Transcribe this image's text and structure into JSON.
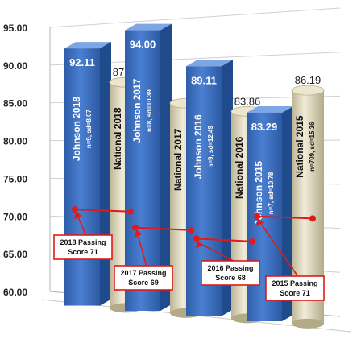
{
  "chart_data": {
    "type": "bar",
    "ylim": [
      60,
      95
    ],
    "yticks": [
      "95.00",
      "90.00",
      "85.00",
      "80.00",
      "75.00",
      "70.00",
      "65.00",
      "60.00"
    ],
    "grid": true,
    "colors": {
      "johnson": "#3f71c4",
      "national": "#d6cfb3",
      "passing": "#e01a1a"
    },
    "groups": [
      {
        "johnson": {
          "label": "Johnson 2018",
          "stats": "n=9, sd=8.07",
          "value": 92.11,
          "value_label": "92.11"
        },
        "national": {
          "label": "National 2018",
          "stats": "n=289, sd=16.65",
          "value": 87.87,
          "value_label": "87.87"
        },
        "passing": {
          "value": 71,
          "line1": "2018 Passing",
          "line2": "Score 71"
        }
      },
      {
        "johnson": {
          "label": "Johnson 2017",
          "stats": "n=8, sd=10.39",
          "value": 94.0,
          "value_label": "94.00"
        },
        "national": {
          "label": "National 2017",
          "stats": "n=740, sd=16.66",
          "value": 85.0,
          "value_label": ""
        },
        "passing": {
          "value": 69,
          "line1": "2017 Passing",
          "line2": "Score 69"
        }
      },
      {
        "johnson": {
          "label": "Johnson 2016",
          "stats": "n=9, sd=12.49",
          "value": 89.11,
          "value_label": "89.11"
        },
        "national": {
          "label": "National 2016",
          "stats": "n=573, sd=15.97",
          "value": 83.86,
          "value_label": "83.86"
        },
        "passing": {
          "value": 68,
          "line1": "2016 Passing",
          "line2": "Score 68"
        }
      },
      {
        "johnson": {
          "label": "Johnson 2015",
          "stats": "n=7, sd=10.78",
          "value": 83.29,
          "value_label": "83.29"
        },
        "national": {
          "label": "National 2015",
          "stats": "n=709, sd=15.36",
          "value": 86.19,
          "value_label": "86.19"
        },
        "passing": {
          "value": 71,
          "line1": "2015 Passing",
          "line2": "Score 71"
        }
      }
    ]
  }
}
